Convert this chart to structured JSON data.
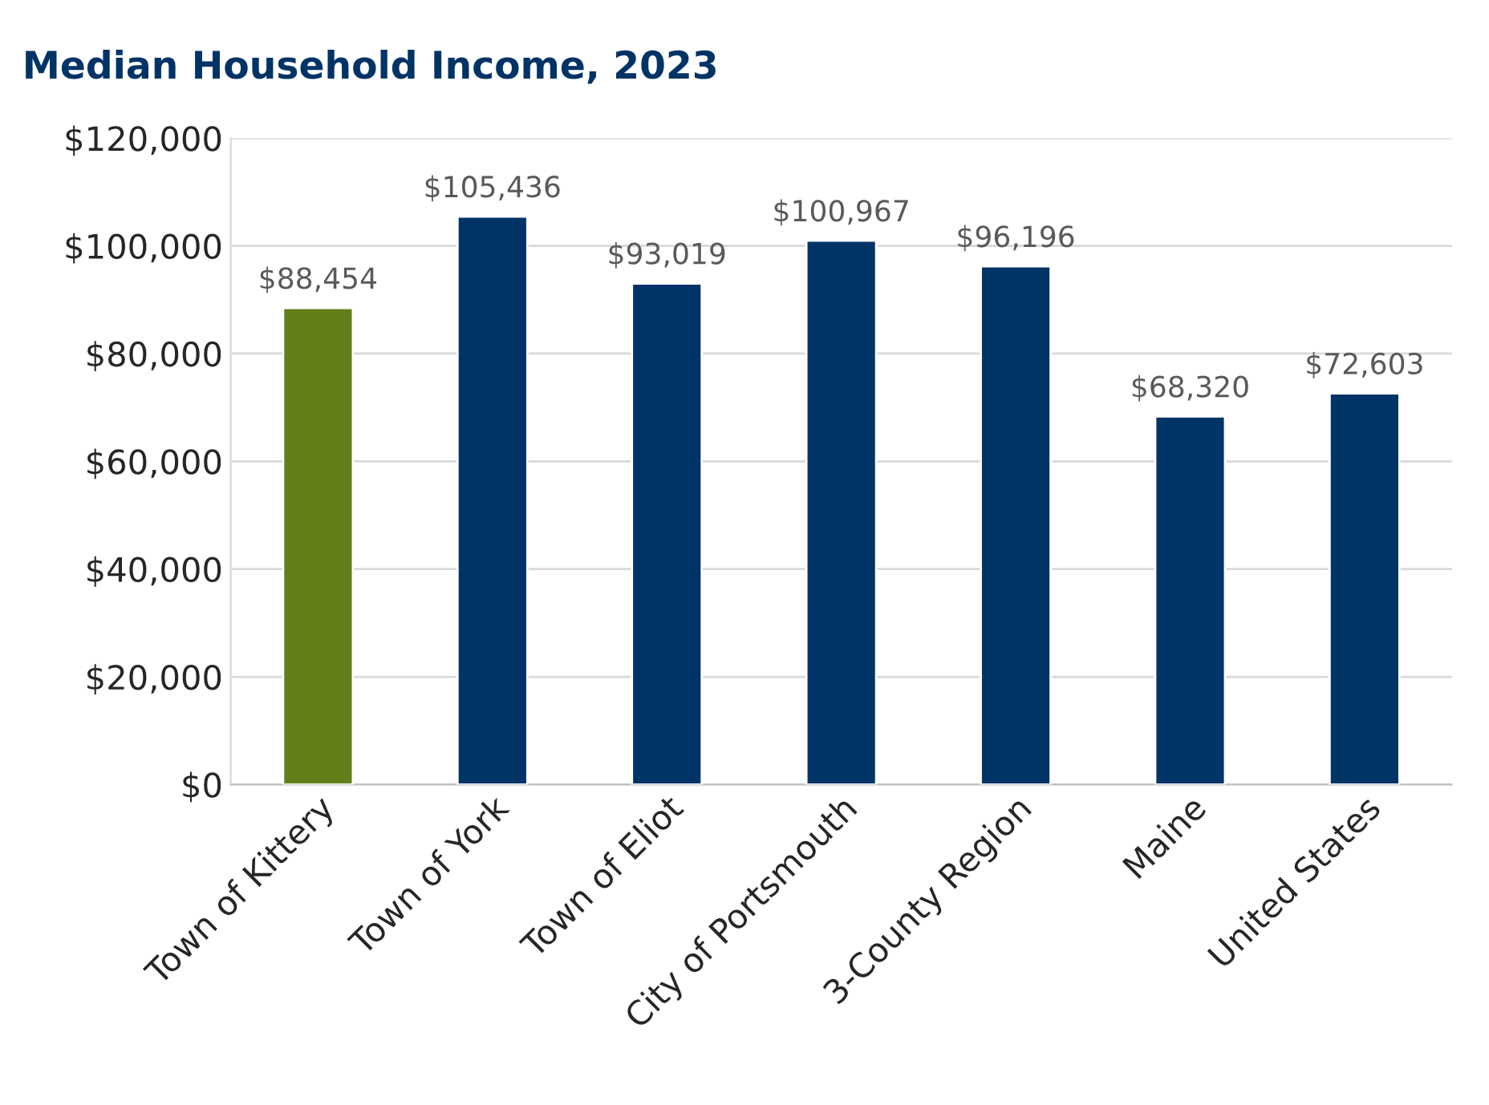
{
  "chart_data": {
    "type": "bar",
    "title": "Median Household Income, 2023",
    "categories": [
      "Town of Kittery",
      "Town of York",
      "Town of Eliot",
      "City of Portsmouth",
      "3-County Region",
      "Maine",
      "United States"
    ],
    "values": [
      88454,
      105436,
      93019,
      100967,
      96196,
      68320,
      72603
    ],
    "colors": [
      "#637f1a",
      "#003366",
      "#003366",
      "#003366",
      "#003366",
      "#003366",
      "#003366"
    ],
    "value_labels": [
      "$88,454",
      "$105,436",
      "$93,019",
      "$100,967",
      "$96,196",
      "$68,320",
      "$72,603"
    ],
    "ylim": [
      0,
      120000
    ],
    "yticks": [
      {
        "value": 0,
        "label": "$0"
      },
      {
        "value": 20000,
        "label": "$20,000"
      },
      {
        "value": 40000,
        "label": "$40,000"
      },
      {
        "value": 60000,
        "label": "$60,000"
      },
      {
        "value": 80000,
        "label": "$80,000"
      },
      {
        "value": 100000,
        "label": "$100,000"
      },
      {
        "value": 120000,
        "label": "$120,000"
      }
    ],
    "grid": "y",
    "legend": false
  }
}
